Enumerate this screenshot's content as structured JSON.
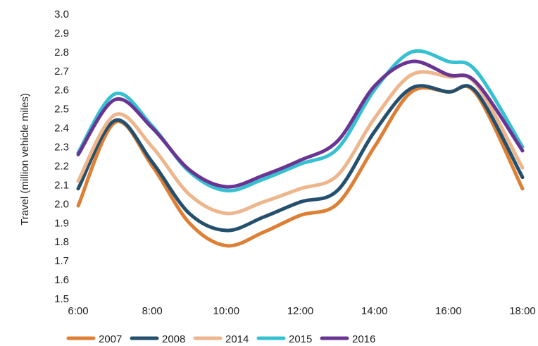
{
  "chart_data": {
    "type": "line",
    "title": "",
    "xlabel": "",
    "ylabel": "Travel (million vehicle miles)",
    "x": [
      "6:00",
      "7:00",
      "8:00",
      "9:00",
      "10:00",
      "11:00",
      "12:00",
      "13:00",
      "14:00",
      "15:00",
      "16:00",
      "16:45",
      "18:00"
    ],
    "x_tick_labels": [
      "6:00",
      "8:00",
      "10:00",
      "12:00",
      "14:00",
      "16:00",
      "18:00"
    ],
    "y_tick_labels": [
      "1.5",
      "1.6",
      "1.7",
      "1.8",
      "1.9",
      "2.0",
      "2.1",
      "2.2",
      "2.3",
      "2.4",
      "2.5",
      "2.6",
      "2.7",
      "2.8",
      "2.9",
      "3.0"
    ],
    "ylim": [
      1.5,
      3.0
    ],
    "grid": false,
    "legend_position": "bottom",
    "series": [
      {
        "name": "2007",
        "color": "#DD7F35",
        "values": [
          1.99,
          2.43,
          2.2,
          1.9,
          1.78,
          1.85,
          1.94,
          2.0,
          2.3,
          2.59,
          2.59,
          2.58,
          2.08
        ]
      },
      {
        "name": "2008",
        "color": "#24506E",
        "values": [
          2.08,
          2.44,
          2.22,
          1.95,
          1.86,
          1.93,
          2.01,
          2.07,
          2.38,
          2.61,
          2.59,
          2.59,
          2.14
        ]
      },
      {
        "name": "2014",
        "color": "#EDB68C",
        "values": [
          2.12,
          2.47,
          2.3,
          2.05,
          1.95,
          2.01,
          2.08,
          2.15,
          2.45,
          2.68,
          2.67,
          2.63,
          2.19
        ]
      },
      {
        "name": "2015",
        "color": "#36C0D1",
        "values": [
          2.27,
          2.58,
          2.41,
          2.17,
          2.07,
          2.13,
          2.21,
          2.29,
          2.6,
          2.8,
          2.75,
          2.7,
          2.3
        ]
      },
      {
        "name": "2016",
        "color": "#6A3493",
        "values": [
          2.26,
          2.55,
          2.4,
          2.18,
          2.09,
          2.15,
          2.23,
          2.33,
          2.62,
          2.75,
          2.68,
          2.64,
          2.28
        ]
      }
    ]
  }
}
